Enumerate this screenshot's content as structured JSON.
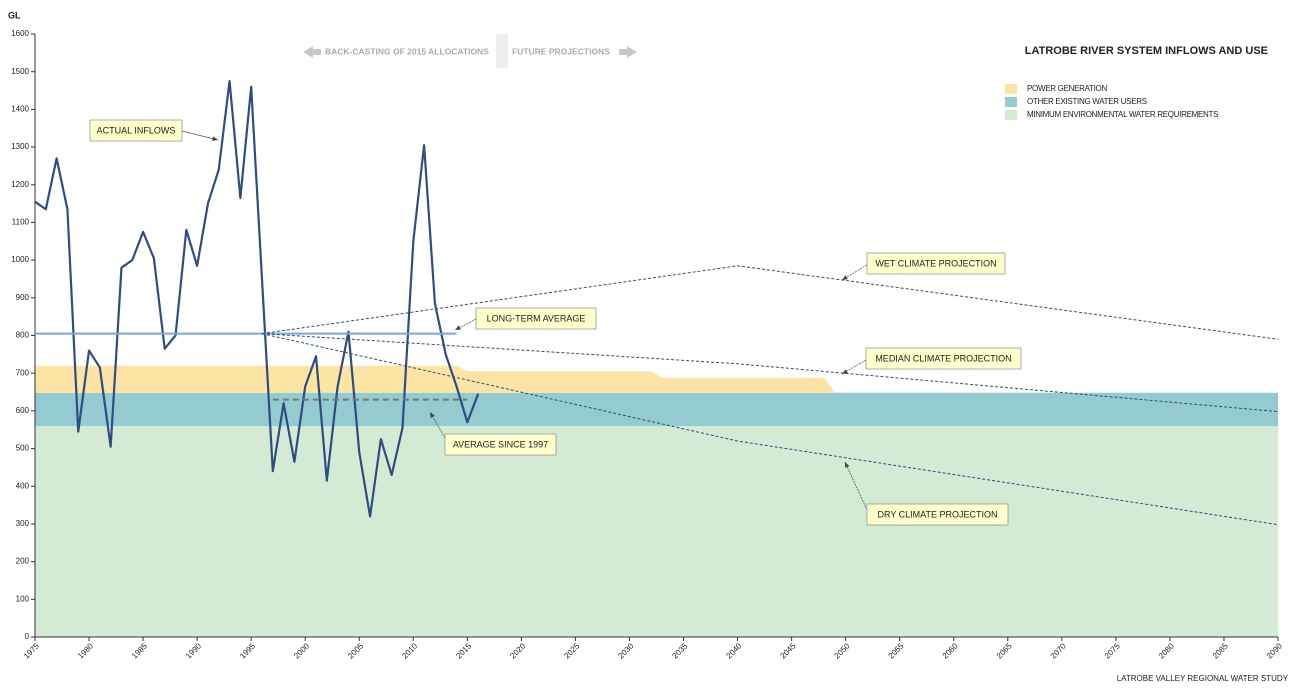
{
  "chart_data": {
    "type": "line",
    "title": "LATROBE RIVER SYSTEM INFLOWS AND USE",
    "source": "LATROBE VALLEY REGIONAL WATER STUDY",
    "y_label": "GL",
    "header_left": "BACK-CASTING OF 2015  ALLOCATIONS",
    "header_right": "FUTURE PROJECTIONS",
    "xlim": [
      1975,
      2090
    ],
    "xticks": [
      1975,
      1980,
      1985,
      1990,
      1995,
      2000,
      2005,
      2010,
      2015,
      2020,
      2025,
      2030,
      2035,
      2040,
      2045,
      2050,
      2055,
      2060,
      2065,
      2070,
      2075,
      2080,
      2085,
      2090
    ],
    "ylim": [
      0,
      1600
    ],
    "yticks": [
      0,
      100,
      200,
      300,
      400,
      500,
      600,
      700,
      800,
      900,
      1000,
      1100,
      1200,
      1300,
      1400,
      1500,
      1600
    ],
    "area_x": [
      1975,
      2014,
      2015,
      2032,
      2033,
      2048,
      2049,
      2090
    ],
    "areas": [
      {
        "name": "POWER GENERATION",
        "color": "#fce5a4",
        "values": [
          72,
          72,
          57,
          57,
          40,
          40,
          0,
          0
        ]
      },
      {
        "name": "OTHER EXISTING WATER USERS",
        "color": "#93cbd0",
        "values": [
          88,
          88,
          88,
          88,
          88,
          88,
          88,
          88
        ]
      },
      {
        "name": "MINIMUM ENVIRONMENTAL WATER REQUIREMENTS",
        "color": "#d3ebd5",
        "values": [
          560,
          560,
          560,
          560,
          560,
          560,
          560,
          560
        ]
      }
    ],
    "series": [
      {
        "name": "ACTUAL INFLOWS",
        "color": "#2f4d82",
        "dash": "none",
        "width": 2.2,
        "x": [
          1975,
          1976,
          1977,
          1978,
          1979,
          1980,
          1981,
          1982,
          1983,
          1984,
          1985,
          1986,
          1987,
          1988,
          1989,
          1990,
          1991,
          1992,
          1993,
          1994,
          1995,
          1996,
          1997,
          1998,
          1999,
          2000,
          2001,
          2002,
          2003,
          2004,
          2005,
          2006,
          2007,
          2008,
          2009,
          2010,
          2011,
          2012,
          2013,
          2014,
          2015,
          2016
        ],
        "values": [
          1155,
          1135,
          1270,
          1135,
          545,
          760,
          715,
          505,
          980,
          1000,
          1075,
          1005,
          765,
          800,
          1080,
          985,
          1150,
          1240,
          1475,
          1165,
          1460,
          950,
          440,
          620,
          465,
          665,
          745,
          415,
          665,
          810,
          490,
          320,
          525,
          430,
          555,
          1050,
          1305,
          885,
          750,
          665,
          570,
          645
        ]
      },
      {
        "name": "LONG-TERM AVERAGE",
        "color": "#7aa6d8",
        "dash": "none",
        "width": 2,
        "x": [
          1975,
          2014
        ],
        "values": [
          805,
          805
        ]
      },
      {
        "name": "AVERAGE SINCE 1997",
        "color": "#777777",
        "dash": "6 4",
        "width": 2,
        "x": [
          1997,
          2015
        ],
        "values": [
          630,
          630
        ]
      },
      {
        "name": "WET CLIMATE PROJECTION",
        "color": "#2f4d82",
        "dash": "3 2",
        "width": 1,
        "x": [
          1996,
          2040,
          2090
        ],
        "values": [
          805,
          985,
          790
        ]
      },
      {
        "name": "MEDIAN CLIMATE PROJECTION",
        "color": "#2f4d82",
        "dash": "3 2",
        "width": 1,
        "x": [
          1996,
          2040,
          2090
        ],
        "values": [
          805,
          725,
          598
        ]
      },
      {
        "name": "DRY CLIMATE PROJECTION",
        "color": "#2f4d82",
        "dash": "3 2",
        "width": 1,
        "x": [
          1996,
          2040,
          2090
        ],
        "values": [
          805,
          520,
          298
        ]
      }
    ]
  }
}
